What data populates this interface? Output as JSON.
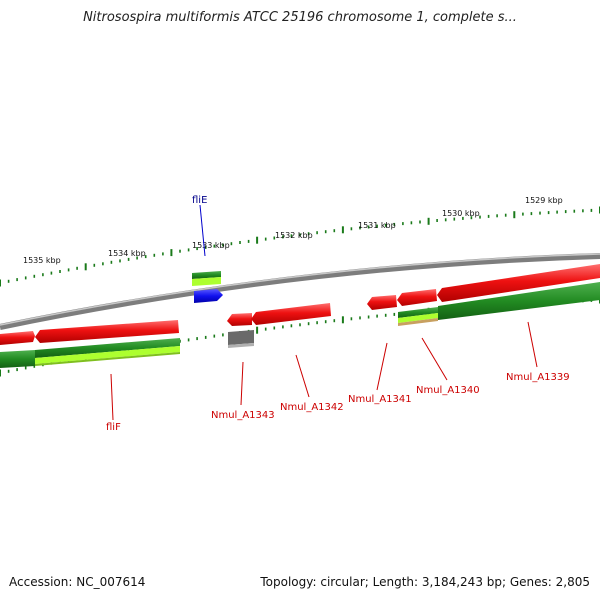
{
  "title": "Nitrosospira multiformis ATCC 25196 chromosome 1, complete s...",
  "footer": {
    "accession": "Accession: NC_007614",
    "summary": "Topology: circular; Length: 3,184,243 bp; Genes: 2,805"
  },
  "scale_ticks": [
    {
      "label": "1535 kbp"
    },
    {
      "label": "1534 kbp"
    },
    {
      "label": "1533 kbp"
    },
    {
      "label": "1532 kbp"
    },
    {
      "label": "1531 kbp"
    },
    {
      "label": "1530 kbp"
    },
    {
      "label": "1529 kbp"
    }
  ],
  "gene_labels": [
    {
      "text": "fliE",
      "color": "#00008b"
    },
    {
      "text": "fliF",
      "color": "#cc0000"
    },
    {
      "text": "Nmul_A1343",
      "color": "#cc0000"
    },
    {
      "text": "Nmul_A1342",
      "color": "#cc0000"
    },
    {
      "text": "Nmul_A1341",
      "color": "#cc0000"
    },
    {
      "text": "Nmul_A1340",
      "color": "#cc0000"
    },
    {
      "text": "Nmul_A1339",
      "color": "#cc0000"
    }
  ],
  "colors": {
    "backbone": "#8c8c8c",
    "gene_red": "#ee1111",
    "gene_green": "#228b22",
    "gene_lightgreen": "#adff2f",
    "gene_blue": "#1010ee",
    "gene_gray": "#6a6a6a",
    "tick_green": "#1a7a1a"
  }
}
